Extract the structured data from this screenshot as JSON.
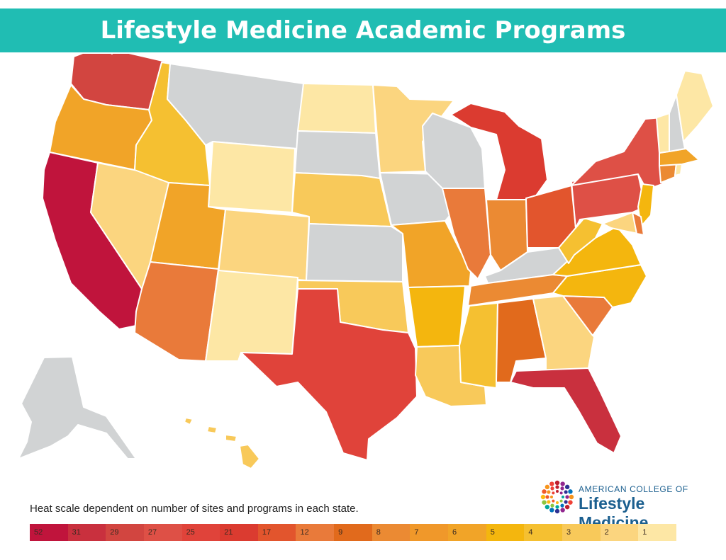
{
  "title": "Lifestyle Medicine Academic Programs",
  "note": "Heat scale dependent on number of sites and programs in each state.",
  "logo": {
    "org": "AMERICAN COLLEGE OF",
    "name": "Lifestyle Medicine",
    "dot_colors": [
      "#f7941d",
      "#ef4136",
      "#be1e2d",
      "#92278f",
      "#2e3192",
      "#0072bc",
      "#00a79d",
      "#8dc63f",
      "#fdb913",
      "#f15a29"
    ]
  },
  "legend": [
    {
      "label": "52",
      "color": "#c0143c"
    },
    {
      "label": "31",
      "color": "#c9303e"
    },
    {
      "label": "29",
      "color": "#d24540"
    },
    {
      "label": "27",
      "color": "#de5046"
    },
    {
      "label": "25",
      "color": "#e0433a"
    },
    {
      "label": "21",
      "color": "#db3b30"
    },
    {
      "label": "17",
      "color": "#e2552d"
    },
    {
      "label": "12",
      "color": "#e97a3a"
    },
    {
      "label": "9",
      "color": "#e16a1c"
    },
    {
      "label": "8",
      "color": "#eb8a33"
    },
    {
      "label": "7",
      "color": "#f0982a"
    },
    {
      "label": "6",
      "color": "#f1a428"
    },
    {
      "label": "5",
      "color": "#f4b60e"
    },
    {
      "label": "4",
      "color": "#f5c031"
    },
    {
      "label": "3",
      "color": "#f8c95a"
    },
    {
      "label": "2",
      "color": "#fbd57f"
    },
    {
      "label": "1",
      "color": "#fde7a5"
    }
  ],
  "no_data_color": "#d1d3d4"
}
